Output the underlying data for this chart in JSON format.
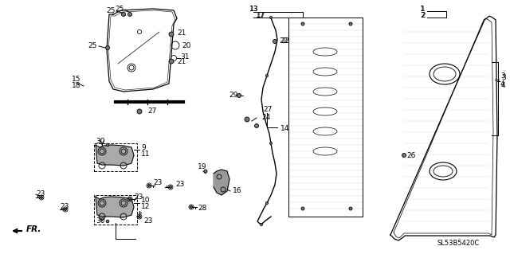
{
  "bg_color": "#ffffff",
  "line_color": "#000000",
  "diagram_code": "SL53B5420C"
}
